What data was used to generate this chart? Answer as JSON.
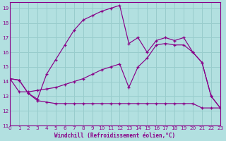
{
  "background_color": "#b2e0e0",
  "grid_color": "#98cccc",
  "line_color": "#880088",
  "xlim": [
    0,
    23
  ],
  "ylim": [
    11,
    19.4
  ],
  "xticks": [
    0,
    1,
    2,
    3,
    4,
    5,
    6,
    7,
    8,
    9,
    10,
    11,
    12,
    13,
    14,
    15,
    16,
    17,
    18,
    19,
    20,
    21,
    22,
    23
  ],
  "yticks": [
    11,
    12,
    13,
    14,
    15,
    16,
    17,
    18,
    19
  ],
  "xlabel": "Windchill (Refroidissement éolien,°C)",
  "s1_x": [
    0,
    1,
    2,
    3,
    4,
    5,
    6,
    7,
    8,
    9,
    10,
    11,
    12,
    13,
    14,
    15,
    16,
    17,
    18,
    19,
    20,
    21,
    22,
    23
  ],
  "s1_y": [
    14.2,
    14.1,
    13.2,
    12.8,
    14.5,
    15.5,
    16.5,
    17.5,
    18.2,
    18.5,
    18.8,
    19.0,
    19.2,
    16.6,
    17.0,
    16.0,
    16.8,
    17.0,
    16.8,
    17.0,
    16.0,
    15.3,
    13.0,
    12.2
  ],
  "s2_x": [
    0,
    1,
    2,
    3,
    4,
    5,
    6,
    7,
    8,
    9,
    10,
    11,
    12,
    13,
    14,
    15,
    16,
    17,
    18,
    19,
    20,
    21,
    22,
    23
  ],
  "s2_y": [
    14.2,
    14.1,
    13.2,
    12.7,
    12.6,
    12.5,
    12.5,
    12.5,
    12.5,
    12.5,
    12.5,
    12.5,
    12.5,
    12.5,
    12.5,
    12.5,
    12.5,
    12.5,
    12.5,
    12.5,
    12.5,
    12.2,
    12.2,
    12.2
  ],
  "s3_x": [
    0,
    1,
    2,
    3,
    4,
    5,
    6,
    7,
    8,
    9,
    10,
    11,
    12,
    13,
    14,
    15,
    16,
    17,
    18,
    19,
    20,
    21,
    22,
    23
  ],
  "s3_y": [
    14.2,
    13.3,
    13.3,
    13.4,
    13.5,
    13.6,
    13.8,
    14.0,
    14.2,
    14.5,
    14.8,
    15.0,
    15.2,
    13.6,
    15.0,
    15.6,
    16.5,
    16.6,
    16.5,
    16.5,
    16.0,
    15.3,
    13.0,
    12.2
  ]
}
